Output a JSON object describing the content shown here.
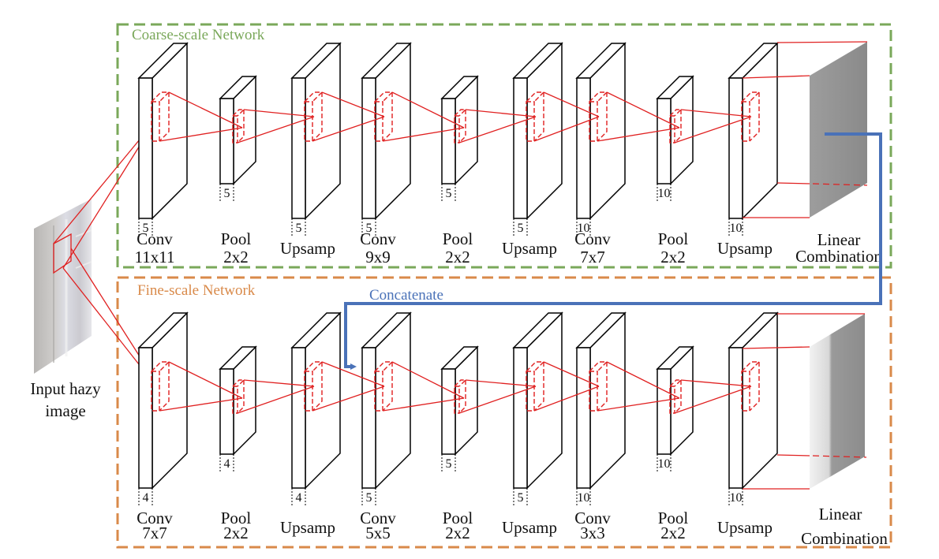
{
  "diagram": {
    "input": {
      "label_line1": "Input hazy",
      "label_line2": "image"
    },
    "coarse": {
      "title": "Coarse-scale Network",
      "border_color": "#7aa85a",
      "layers": [
        {
          "op": "Conv",
          "param": "11x11",
          "channels": "5",
          "size": "large"
        },
        {
          "op": "Pool",
          "param": "2x2",
          "channels": "5",
          "size": "small"
        },
        {
          "op": "Upsamp",
          "param": "",
          "channels": "5",
          "size": "large"
        },
        {
          "op": "Conv",
          "param": "9x9",
          "channels": "5",
          "size": "large"
        },
        {
          "op": "Pool",
          "param": "2x2",
          "channels": "5",
          "size": "small"
        },
        {
          "op": "Upsamp",
          "param": "",
          "channels": "5",
          "size": "large"
        },
        {
          "op": "Conv",
          "param": "7x7",
          "channels": "10",
          "size": "large"
        },
        {
          "op": "Pool",
          "param": "2x2",
          "channels": "10",
          "size": "small"
        },
        {
          "op": "Upsamp",
          "param": "",
          "channels": "10",
          "size": "large"
        }
      ],
      "output": {
        "label_line1": "Linear",
        "label_line2": "Combination"
      }
    },
    "fine": {
      "title": "Fine-scale Network",
      "border_color": "#d98a4a",
      "layers": [
        {
          "op": "Conv",
          "param": "7x7",
          "channels": "4",
          "size": "large"
        },
        {
          "op": "Pool",
          "param": "2x2",
          "channels": "4",
          "size": "small"
        },
        {
          "op": "Upsamp",
          "param": "",
          "channels": "4",
          "size": "large"
        },
        {
          "op": "Conv",
          "param": "5x5",
          "channels": "5",
          "size": "large"
        },
        {
          "op": "Pool",
          "param": "2x2",
          "channels": "5",
          "size": "small"
        },
        {
          "op": "Upsamp",
          "param": "",
          "channels": "5",
          "size": "large"
        },
        {
          "op": "Conv",
          "param": "3x3",
          "channels": "10",
          "size": "large"
        },
        {
          "op": "Pool",
          "param": "2x2",
          "channels": "10",
          "size": "small"
        },
        {
          "op": "Upsamp",
          "param": "",
          "channels": "10",
          "size": "large"
        }
      ],
      "output": {
        "label_line1": "Linear",
        "label_line2": "Combination"
      }
    },
    "concatenate": {
      "label": "Concatenate",
      "color": "#4a72b8"
    },
    "kernel_color": "#e02020"
  }
}
